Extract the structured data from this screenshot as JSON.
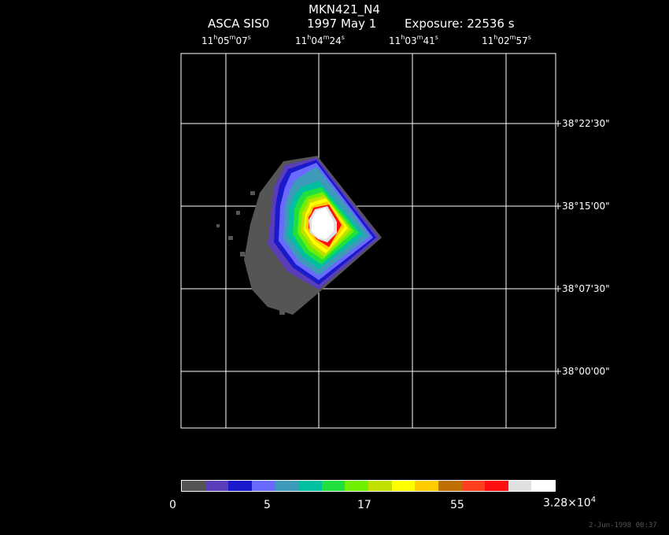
{
  "header": {
    "object": "MKN421_N4",
    "instrument": "ASCA SIS0",
    "date": "1997 May  1",
    "exposure": "Exposure: 22536 s"
  },
  "ra_axis": [
    {
      "h": "11",
      "m": "05",
      "s": "07"
    },
    {
      "h": "11",
      "m": "04",
      "s": "24"
    },
    {
      "h": "11",
      "m": "03",
      "s": "41"
    },
    {
      "h": "11",
      "m": "02",
      "s": "57"
    }
  ],
  "dec_axis": [
    "+38°22'30\"",
    "+38°15'00\"",
    "+38°07'30\"",
    "+38°00'00\""
  ],
  "colorbar": {
    "labels": [
      "0",
      "5",
      "17",
      "55",
      "3.28×10",
      "4"
    ],
    "colors": [
      "#555555",
      "#5a3db8",
      "#1a1acc",
      "#6a6aff",
      "#3d9ab8",
      "#00c0a0",
      "#20e040",
      "#70f000",
      "#c0e000",
      "#ffff00",
      "#ffcc00",
      "#c07000",
      "#ff4020",
      "#ff1010",
      "#e0e0e0",
      "#ffffff"
    ]
  },
  "footer": {
    "timestamp": "2-Jun-1998 00:37"
  }
}
